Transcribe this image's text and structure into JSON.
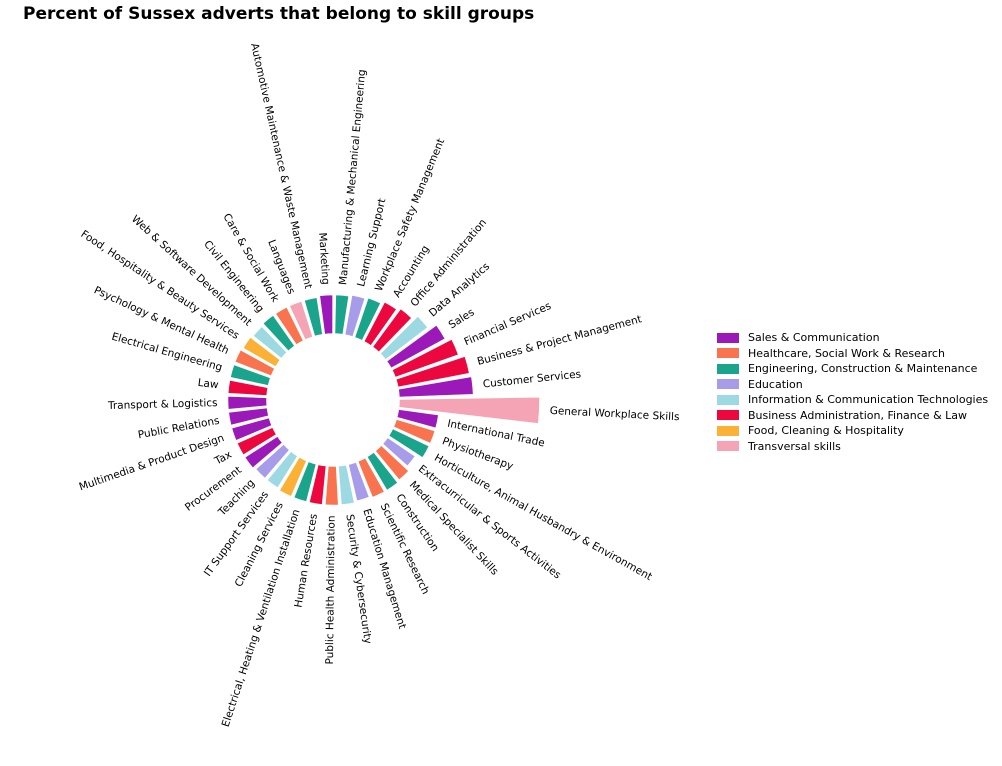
{
  "chart_data": {
    "type": "radial-bar",
    "title": "Percent of Sussex adverts that belong to skill groups",
    "legend_position": "right",
    "groups": [
      {
        "name": "Sales & Communication",
        "color": "#9b19b8"
      },
      {
        "name": "Healthcare, Social Work & Research",
        "color": "#f8734e"
      },
      {
        "name": "Engineering, Construction & Maintenance",
        "color": "#1ba48c"
      },
      {
        "name": "Education",
        "color": "#a69cea"
      },
      {
        "name": "Information & Communication Technologies",
        "color": "#9dd9e2"
      },
      {
        "name": "Business Administration, Finance & Law",
        "color": "#ec083e"
      },
      {
        "name": "Food, Cleaning & Hospitality",
        "color": "#fbb136"
      },
      {
        "name": "Transversal skills",
        "color": "#f4a4b4"
      }
    ],
    "bars": [
      {
        "label": "General Workplace Skills",
        "group": "Transversal skills",
        "value": 100
      },
      {
        "label": "Customer Services",
        "group": "Sales & Communication",
        "value": 53
      },
      {
        "label": "Business & Project Management",
        "group": "Business Administration, Finance & Law",
        "value": 52
      },
      {
        "label": "Financial Services",
        "group": "Business Administration, Finance & Law",
        "value": 48
      },
      {
        "label": "Sales",
        "group": "Sales & Communication",
        "value": 44
      },
      {
        "label": "Data Analytics",
        "group": "Information & Communication Technologies",
        "value": 38
      },
      {
        "label": "Office Administration",
        "group": "Business Administration, Finance & Law",
        "value": 34
      },
      {
        "label": "Accounting",
        "group": "Business Administration, Finance & Law",
        "value": 32
      },
      {
        "label": "Workplace Safety Management",
        "group": "Engineering, Construction & Maintenance",
        "value": 30
      },
      {
        "label": "Learning Support",
        "group": "Education",
        "value": 29
      },
      {
        "label": "Manufacturing & Mechanical Engineering",
        "group": "Engineering, Construction & Maintenance",
        "value": 28
      },
      {
        "label": "Marketing",
        "group": "Sales & Communication",
        "value": 28
      },
      {
        "label": "Automotive Maintenance & Waste Management",
        "group": "Engineering, Construction & Maintenance",
        "value": 27
      },
      {
        "label": "Languages",
        "group": "Transversal skills",
        "value": 27
      },
      {
        "label": "Care & Social Work",
        "group": "Healthcare, Social Work & Research",
        "value": 27
      },
      {
        "label": "Civil Engineering",
        "group": "Engineering, Construction & Maintenance",
        "value": 27
      },
      {
        "label": "Web & Software Development",
        "group": "Information & Communication Technologies",
        "value": 26
      },
      {
        "label": "Food, Hospitality & Beauty Services",
        "group": "Food, Cleaning & Hospitality",
        "value": 27
      },
      {
        "label": "Psychology & Mental Health",
        "group": "Healthcare, Social Work & Research",
        "value": 28
      },
      {
        "label": "Electrical Engineering",
        "group": "Engineering, Construction & Maintenance",
        "value": 28
      },
      {
        "label": "Law",
        "group": "Business Administration, Finance & Law",
        "value": 28
      },
      {
        "label": "Transport & Logistics",
        "group": "Sales & Communication",
        "value": 28
      },
      {
        "label": "Public Relations",
        "group": "Sales & Communication",
        "value": 28
      },
      {
        "label": "Multimedia & Product Design",
        "group": "Sales & Communication",
        "value": 28
      },
      {
        "label": "Tax",
        "group": "Business Administration, Finance & Law",
        "value": 28
      },
      {
        "label": "Procurement",
        "group": "Sales & Communication",
        "value": 28
      },
      {
        "label": "Teaching",
        "group": "Education",
        "value": 27
      },
      {
        "label": "IT Support Services",
        "group": "Information & Communication Technologies",
        "value": 27
      },
      {
        "label": "Cleaning Services",
        "group": "Food, Cleaning & Hospitality",
        "value": 28
      },
      {
        "label": "Electrical, Heating & Ventilation Installation",
        "group": "Engineering, Construction & Maintenance",
        "value": 28
      },
      {
        "label": "Human Resources",
        "group": "Business Administration, Finance & Law",
        "value": 28
      },
      {
        "label": "Public Health Administration",
        "group": "Healthcare, Social Work & Research",
        "value": 28
      },
      {
        "label": "Security & Cybersecurity",
        "group": "Information & Communication Technologies",
        "value": 28
      },
      {
        "label": "Education Management",
        "group": "Education",
        "value": 27
      },
      {
        "label": "Scientific Research",
        "group": "Healthcare, Social Work & Research",
        "value": 28
      },
      {
        "label": "Construction",
        "group": "Engineering, Construction & Maintenance",
        "value": 28
      },
      {
        "label": "Medical Specialist Skills",
        "group": "Healthcare, Social Work & Research",
        "value": 27
      },
      {
        "label": "Extracurricular & Sports Activities",
        "group": "Education",
        "value": 24
      },
      {
        "label": "Horticulture, Animal Husbandry & Environment",
        "group": "Engineering, Construction & Maintenance",
        "value": 29
      },
      {
        "label": "Physiotherapy",
        "group": "Healthcare, Social Work & Research",
        "value": 29
      },
      {
        "label": "International Trade",
        "group": "Sales & Communication",
        "value": 29
      }
    ]
  }
}
